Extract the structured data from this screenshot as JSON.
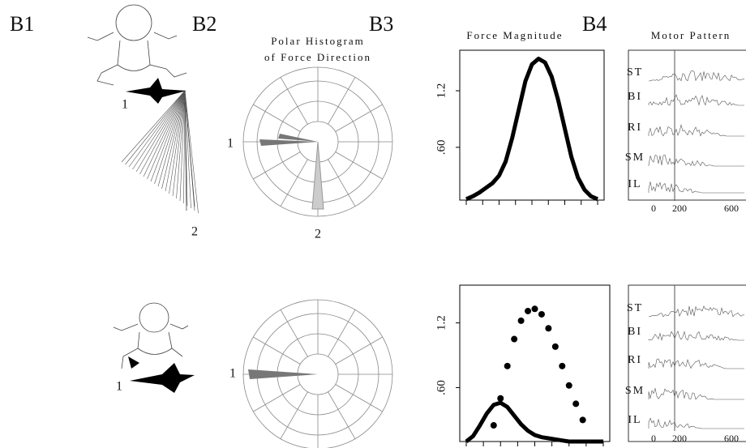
{
  "panel_labels": {
    "b1": "B1",
    "b2": "B2",
    "b3": "B3",
    "b4": "B4"
  },
  "polar_title": [
    "Polar Histogram",
    "of Force Direction"
  ],
  "force_title": "Force Magnitude",
  "motor_title": "Motor Pattern",
  "top": {
    "b1_labels": [
      "1",
      "2"
    ],
    "b2_labels": [
      "1",
      "2"
    ],
    "force": {
      "type": "line",
      "color": "#000000",
      "ylim": [
        0.04,
        1.63
      ],
      "yticks": [
        {
          "value": 0.6,
          "label": ".60"
        },
        1.2
      ],
      "values": [
        0.05,
        0.08,
        0.12,
        0.17,
        0.22,
        0.3,
        0.45,
        0.7,
        1.0,
        1.3,
        1.48,
        1.54,
        1.5,
        1.35,
        1.1,
        0.8,
        0.5,
        0.28,
        0.15,
        0.08,
        0.05
      ]
    },
    "muscles": [
      "ST",
      "BI",
      "RI",
      "SM",
      "IL"
    ],
    "time_ticks": [
      "0",
      "200",
      "600"
    ]
  },
  "bottom": {
    "b1_labels": [
      "1"
    ],
    "b2_labels": [
      "1"
    ],
    "force": {
      "type": "line",
      "ylim": [
        0.1,
        1.55
      ],
      "yticks": [
        {
          "value": 0.6,
          "label": ".60"
        },
        1.2
      ],
      "series": [
        {
          "color": "#000000",
          "values": [
            0.1,
            0.15,
            0.25,
            0.36,
            0.44,
            0.46,
            0.42,
            0.34,
            0.26,
            0.2,
            0.16,
            0.14,
            0.13,
            0.12,
            0.11,
            0.1,
            0.1,
            0.1,
            0.1,
            0.1,
            0.1
          ]
        },
        {
          "color": "#000000",
          "values": [
            null,
            null,
            null,
            null,
            0.25,
            0.5,
            0.8,
            1.05,
            1.22,
            1.31,
            1.33,
            1.28,
            1.15,
            0.98,
            0.8,
            0.62,
            0.45,
            0.3,
            null,
            null,
            null
          ]
        }
      ]
    },
    "muscles": [
      "ST",
      "BI",
      "RI",
      "SM",
      "IL"
    ],
    "time_ticks": [
      "0",
      "200",
      "600"
    ]
  }
}
